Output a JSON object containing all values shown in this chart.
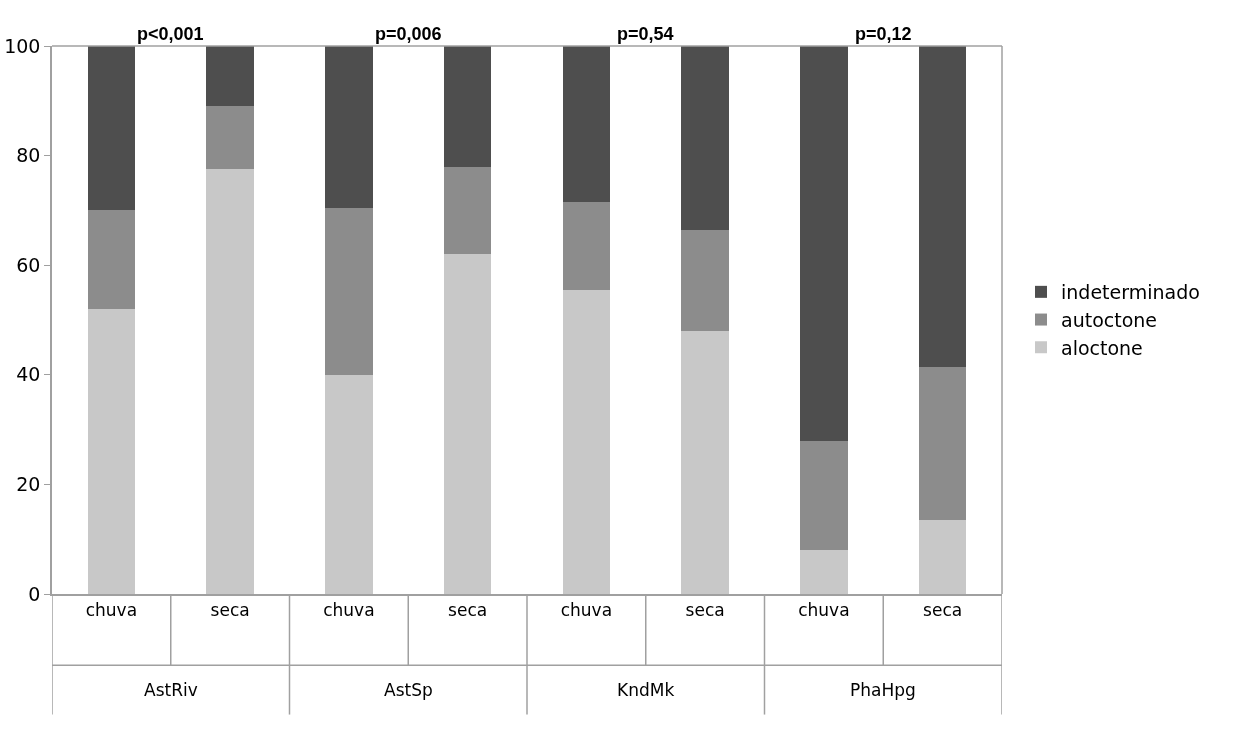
{
  "chart_data": {
    "type": "bar",
    "stacked": true,
    "categories": [
      "chuva",
      "seca",
      "chuva",
      "seca",
      "chuva",
      "seca",
      "chuva",
      "seca"
    ],
    "series": [
      {
        "name": "aloctone",
        "color": "#c8c8c8",
        "values": [
          52,
          77.5,
          40,
          62,
          55.5,
          48,
          8,
          13.5
        ]
      },
      {
        "name": "autoctone",
        "color": "#8c8c8c",
        "values": [
          18,
          11.5,
          30.5,
          16,
          16,
          18.5,
          20,
          28
        ]
      },
      {
        "name": "indeterminado",
        "color": "#4e4e4e",
        "values": [
          30,
          11,
          29.5,
          22,
          28.5,
          33.5,
          72,
          58.5
        ]
      }
    ],
    "annotations": [
      "p<0,001",
      "p=0,006",
      "p=0,54",
      "p=0,12",
      "AstRiv",
      "AstSp",
      "KndMk",
      "PhaHpg"
    ],
    "ylim": [
      0,
      100
    ],
    "yticks": [
      0,
      20,
      40,
      60,
      80,
      100
    ],
    "grid": false,
    "legend": "right"
  }
}
